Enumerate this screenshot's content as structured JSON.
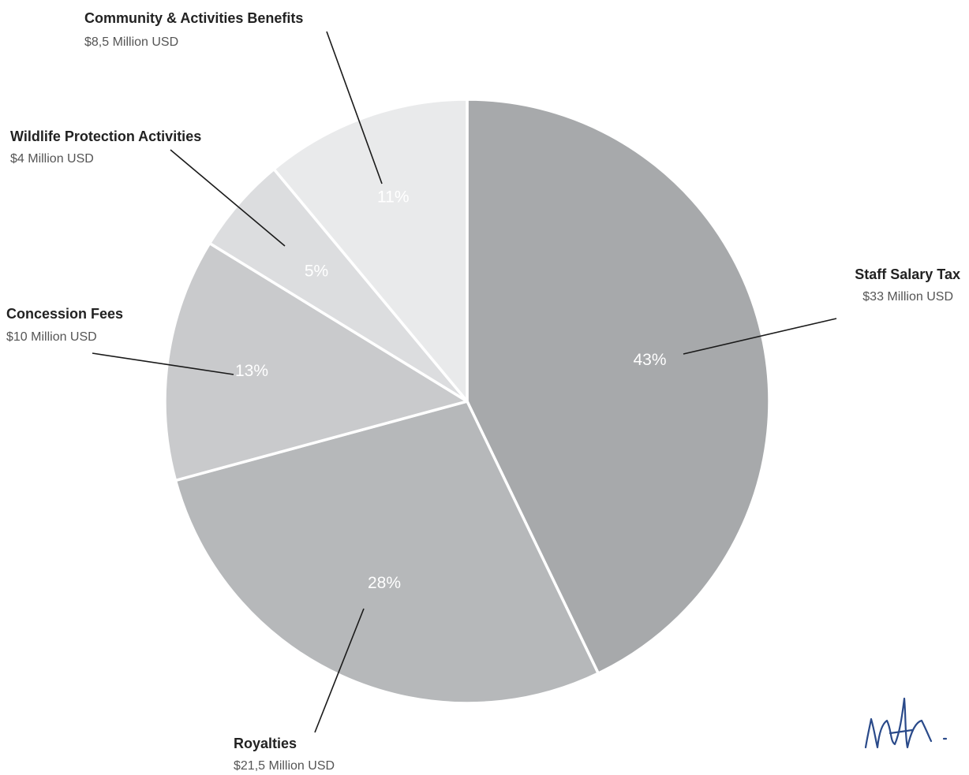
{
  "chart_data": {
    "type": "pie",
    "title": "",
    "start_angle_deg": 0,
    "direction": "clockwise",
    "slices": [
      {
        "name": "Staff Salary Tax",
        "value": 33,
        "percent": 43,
        "percent_label": "43%",
        "amount_label": "$33 Million USD",
        "color": "#a7a9ab"
      },
      {
        "name": "Royalties",
        "value": 21.5,
        "percent": 28,
        "percent_label": "28%",
        "amount_label": "$21,5 Million USD",
        "color": "#b6b8ba"
      },
      {
        "name": "Concession Fees",
        "value": 10,
        "percent": 13,
        "percent_label": "13%",
        "amount_label": "$10 Million USD",
        "color": "#c9cacc"
      },
      {
        "name": "Wildlife Protection Activities",
        "value": 4,
        "percent": 5,
        "percent_label": "5%",
        "amount_label": "$4 Million USD",
        "color": "#dcdddf"
      },
      {
        "name": "Community & Activities Benefits",
        "value": 8.5,
        "percent": 11,
        "percent_label": "11%",
        "amount_label": "$8,5 Million USD",
        "color": "#e9eaeb"
      }
    ],
    "legend": "none",
    "separator_color": "#ffffff"
  },
  "signature": {
    "kind": "handwritten-signature",
    "color": "#2a4a8a"
  }
}
